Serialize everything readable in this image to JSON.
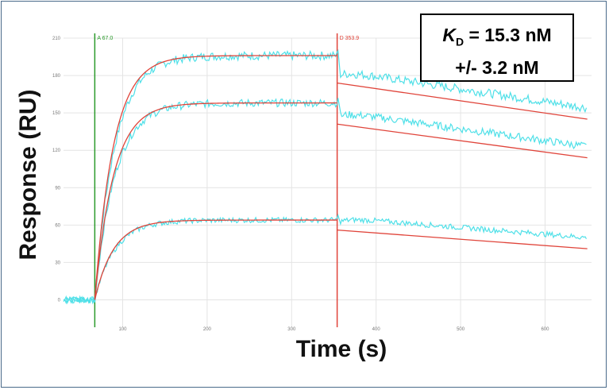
{
  "chart_data": {
    "type": "line",
    "xlabel": "Time (s)",
    "ylabel": "Response (RU)",
    "xlim": [
      30,
      655
    ],
    "ylim": [
      -22,
      210
    ],
    "x_ticks": [
      100,
      200,
      300,
      400,
      500,
      600
    ],
    "y_ticks": [
      0,
      30,
      60,
      90,
      120,
      150,
      180,
      210
    ],
    "markers": [
      {
        "label": "A 67.0",
        "x": 67,
        "color": "#2a9a2a"
      },
      {
        "label": "D 353.9",
        "x": 353.9,
        "color": "#e0443a"
      }
    ],
    "association": {
      "start": 67,
      "end": 353.9,
      "k": 0.045
    },
    "dissociation": {
      "start": 353.9,
      "end": 650,
      "k": 0.0011
    },
    "series": [
      {
        "kind": "fit",
        "plateau": 196,
        "dissociation_start": 174,
        "dissociation_end": 145
      },
      {
        "kind": "fit",
        "plateau": 158,
        "dissociation_start": 141,
        "dissociation_end": 114
      },
      {
        "kind": "fit",
        "plateau": 64,
        "dissociation_start": 56,
        "dissociation_end": 41
      }
    ],
    "colors": {
      "measured": "#4fe0e8",
      "fit": "#e0443a",
      "grid": "#e4e4e4"
    }
  },
  "annotation": {
    "kd_label": "K",
    "kd_subscript": "D",
    "kd_value": " = 15.3 nM",
    "kd_error": "+/- 3.2 nM"
  }
}
